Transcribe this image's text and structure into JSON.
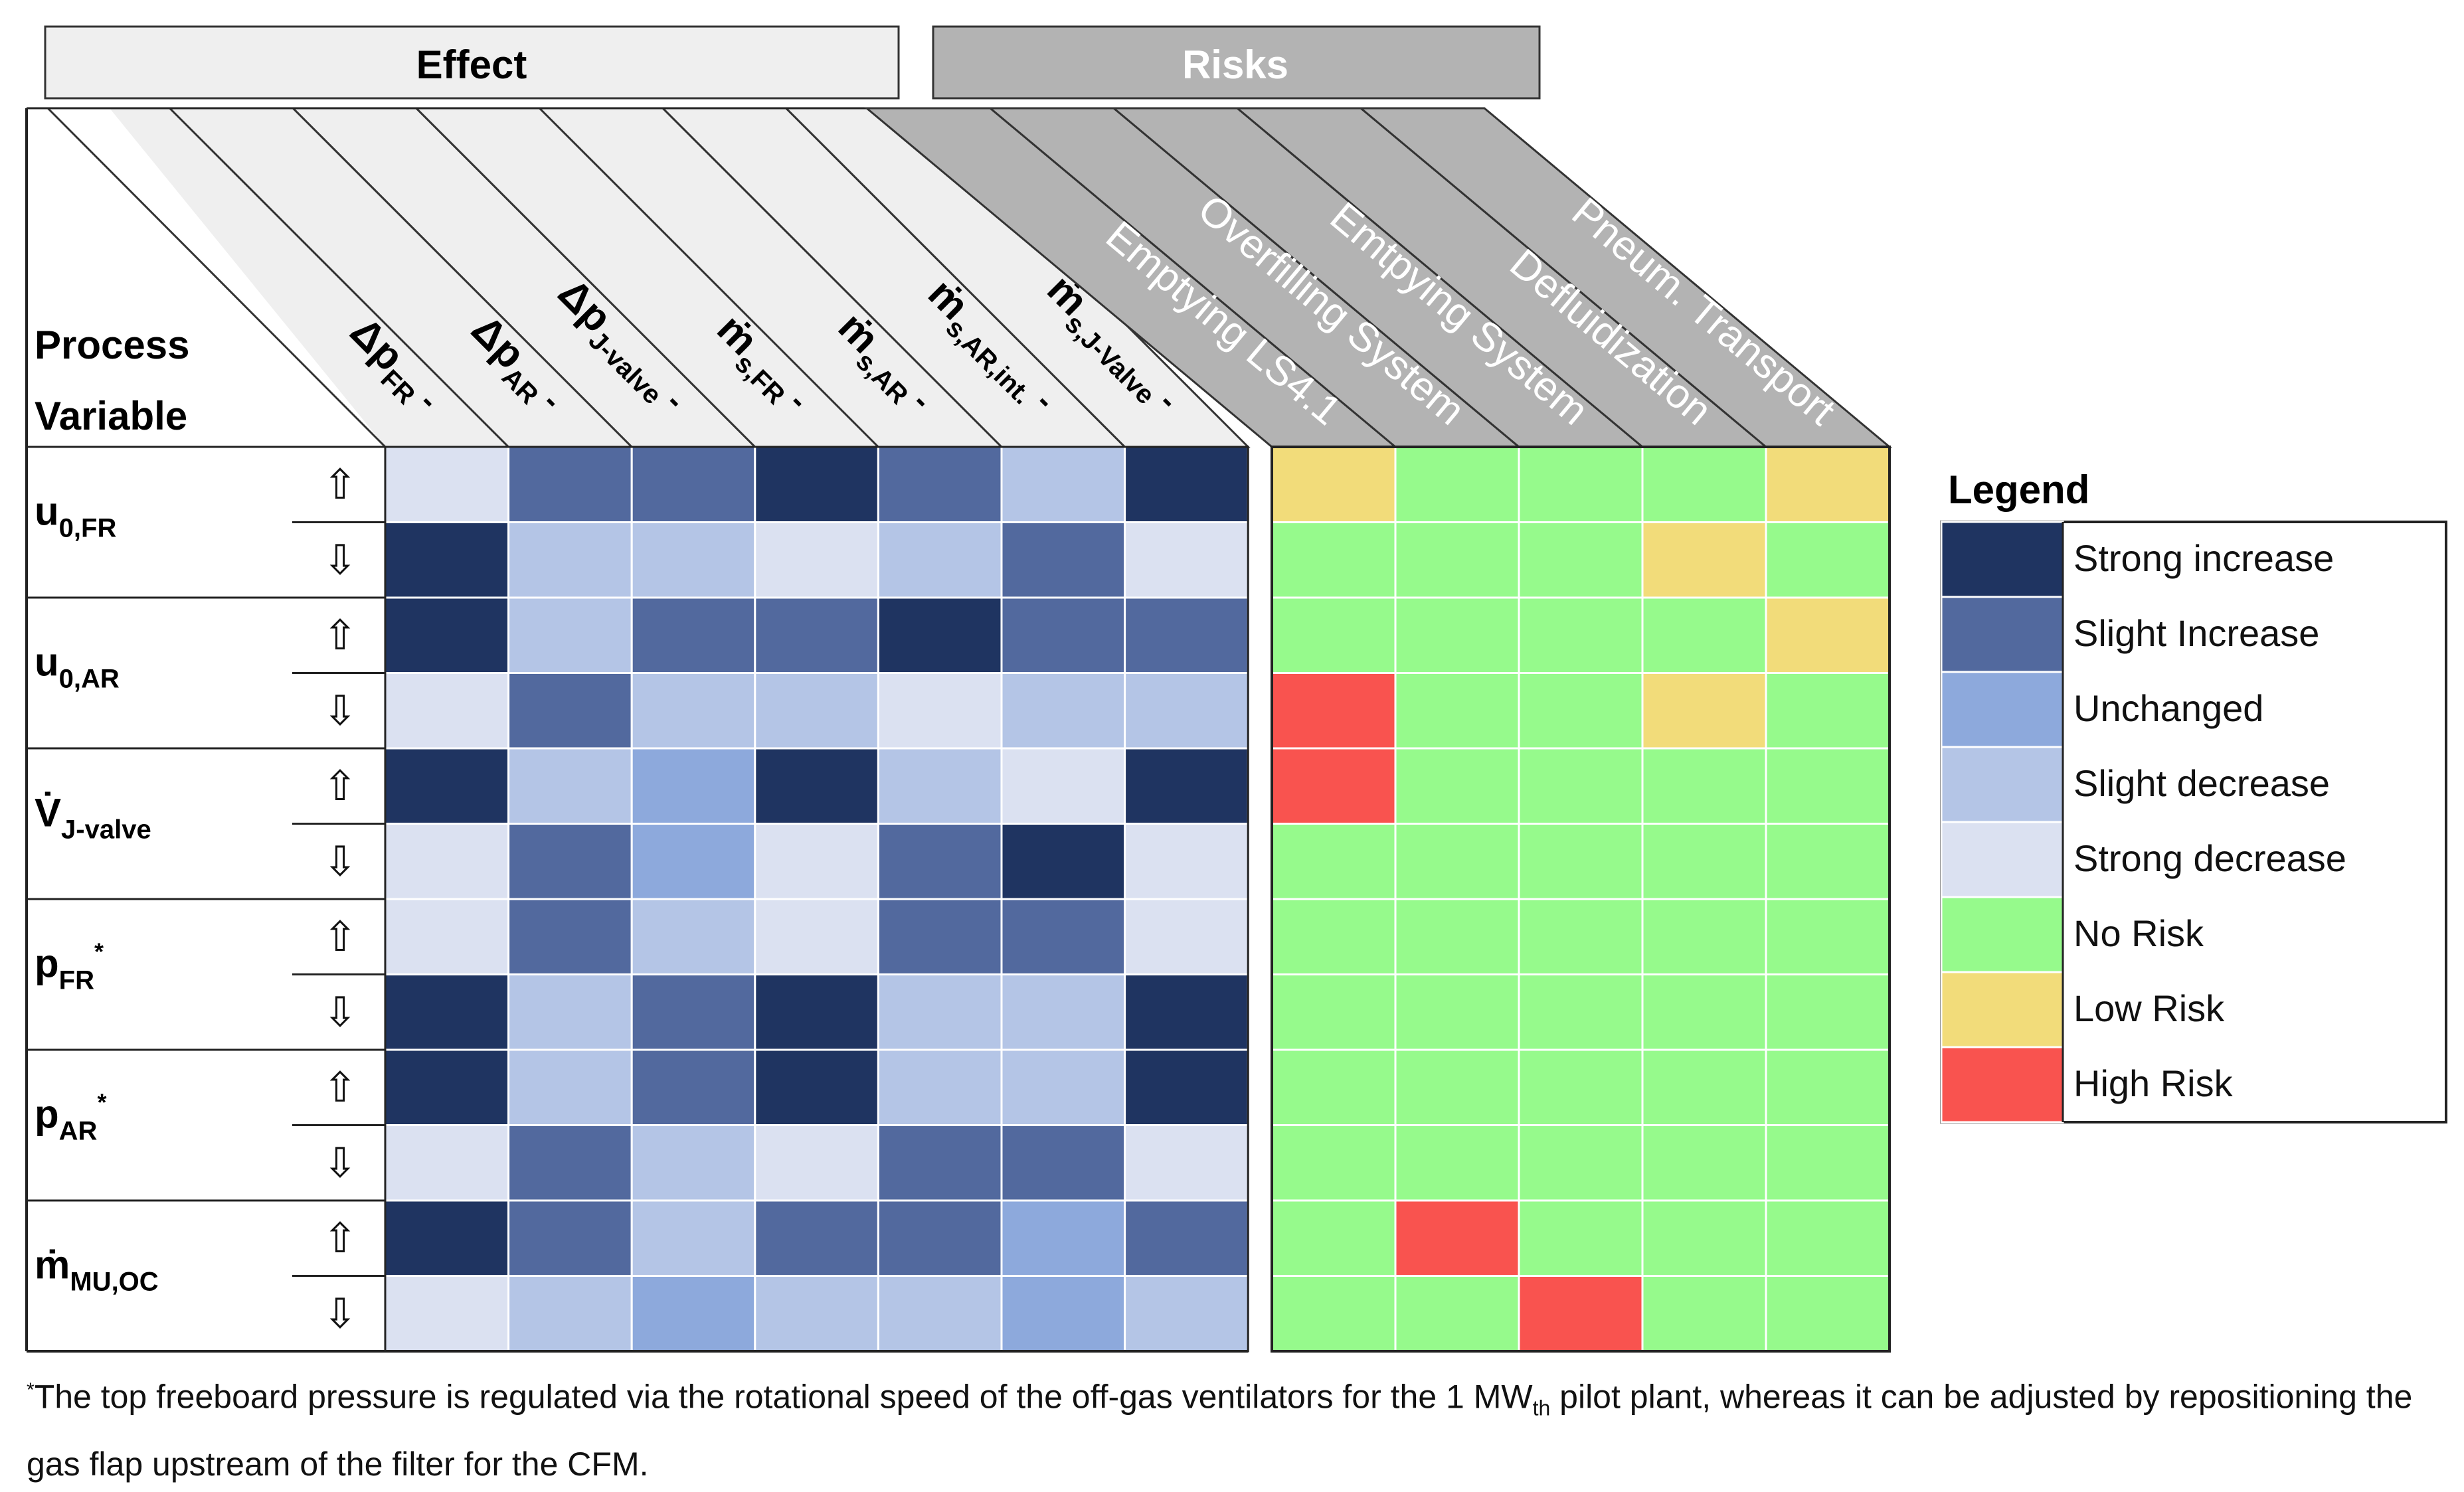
{
  "chart_data": {
    "type": "heatmap",
    "headers": {
      "effect": "Effect",
      "risks": "Risks"
    },
    "row_header": [
      "Process",
      "Variable"
    ],
    "effect_columns": [
      {
        "main": "Δp",
        "sub": "FR",
        "dot": false
      },
      {
        "main": "Δp",
        "sub": "AR",
        "dot": false
      },
      {
        "main": "Δp",
        "sub": "J-valve",
        "dot": false
      },
      {
        "main": "ṁ",
        "sub": "s,FR",
        "dot": true
      },
      {
        "main": "ṁ",
        "sub": "s,AR",
        "dot": true
      },
      {
        "main": "ṁ",
        "sub": "s,AR,int.",
        "dot": true
      },
      {
        "main": "ṁ",
        "sub": "s,J-Valve",
        "dot": true
      }
    ],
    "risk_columns": [
      "Emptying LS4.1",
      "Overfilling System",
      "Emtpying System",
      "Defluidization",
      "Pneum. Transport"
    ],
    "process_variables": [
      {
        "main": "u",
        "sub": "0,FR",
        "sup": ""
      },
      {
        "main": "u",
        "sub": "0,AR",
        "sup": ""
      },
      {
        "main": "V̇",
        "sub": "J-valve",
        "sup": ""
      },
      {
        "main": "p",
        "sub": "FR",
        "sup": "*"
      },
      {
        "main": "p",
        "sub": "AR",
        "sup": "*"
      },
      {
        "main": "ṁ",
        "sub": "MU,OC",
        "sup": ""
      }
    ],
    "direction_labels": [
      "⇧",
      "⇩"
    ],
    "effect_scale": [
      "Strong increase",
      "Slight Increase",
      "Unchanged",
      "Slight decrease",
      "Strong decrease"
    ],
    "risk_scale": [
      "No Risk",
      "Low Risk",
      "High Risk"
    ],
    "effect_values": [
      [
        "Strong decrease",
        "Slight Increase",
        "Slight Increase",
        "Strong increase",
        "Slight Increase",
        "Slight decrease",
        "Strong increase"
      ],
      [
        "Strong increase",
        "Slight decrease",
        "Slight decrease",
        "Strong decrease",
        "Slight decrease",
        "Slight Increase",
        "Strong decrease"
      ],
      [
        "Strong increase",
        "Slight decrease",
        "Slight Increase",
        "Slight Increase",
        "Strong increase",
        "Slight Increase",
        "Slight Increase"
      ],
      [
        "Strong decrease",
        "Slight Increase",
        "Slight decrease",
        "Slight decrease",
        "Strong decrease",
        "Slight decrease",
        "Slight decrease"
      ],
      [
        "Strong increase",
        "Slight decrease",
        "Unchanged",
        "Strong increase",
        "Slight decrease",
        "Strong decrease",
        "Strong increase"
      ],
      [
        "Strong decrease",
        "Slight Increase",
        "Unchanged",
        "Strong decrease",
        "Slight Increase",
        "Strong increase",
        "Strong decrease"
      ],
      [
        "Strong decrease",
        "Slight Increase",
        "Slight decrease",
        "Strong decrease",
        "Slight Increase",
        "Slight Increase",
        "Strong decrease"
      ],
      [
        "Strong increase",
        "Slight decrease",
        "Slight Increase",
        "Strong increase",
        "Slight decrease",
        "Slight decrease",
        "Strong increase"
      ],
      [
        "Strong increase",
        "Slight decrease",
        "Slight Increase",
        "Strong increase",
        "Slight decrease",
        "Slight decrease",
        "Strong increase"
      ],
      [
        "Strong decrease",
        "Slight Increase",
        "Slight decrease",
        "Strong decrease",
        "Slight Increase",
        "Slight Increase",
        "Strong decrease"
      ],
      [
        "Strong increase",
        "Slight Increase",
        "Slight decrease",
        "Slight Increase",
        "Slight Increase",
        "Unchanged",
        "Slight Increase"
      ],
      [
        "Strong decrease",
        "Slight decrease",
        "Unchanged",
        "Slight decrease",
        "Slight decrease",
        "Unchanged",
        "Slight decrease"
      ]
    ],
    "risk_values": [
      [
        "Low Risk",
        "No Risk",
        "No Risk",
        "No Risk",
        "Low Risk"
      ],
      [
        "No Risk",
        "No Risk",
        "No Risk",
        "Low Risk",
        "No Risk"
      ],
      [
        "No Risk",
        "No Risk",
        "No Risk",
        "No Risk",
        "Low Risk"
      ],
      [
        "High Risk",
        "No Risk",
        "No Risk",
        "Low Risk",
        "No Risk"
      ],
      [
        "High Risk",
        "No Risk",
        "No Risk",
        "No Risk",
        "No Risk"
      ],
      [
        "No Risk",
        "No Risk",
        "No Risk",
        "No Risk",
        "No Risk"
      ],
      [
        "No Risk",
        "No Risk",
        "No Risk",
        "No Risk",
        "No Risk"
      ],
      [
        "No Risk",
        "No Risk",
        "No Risk",
        "No Risk",
        "No Risk"
      ],
      [
        "No Risk",
        "No Risk",
        "No Risk",
        "No Risk",
        "No Risk"
      ],
      [
        "No Risk",
        "No Risk",
        "No Risk",
        "No Risk",
        "No Risk"
      ],
      [
        "No Risk",
        "High Risk",
        "No Risk",
        "No Risk",
        "No Risk"
      ],
      [
        "No Risk",
        "No Risk",
        "High Risk",
        "No Risk",
        "No Risk"
      ]
    ],
    "legend": {
      "title": "Legend",
      "items": [
        {
          "label": "Strong increase",
          "color": "#1f3461"
        },
        {
          "label": "Slight Increase",
          "color": "#52699e"
        },
        {
          "label": "Unchanged",
          "color": "#8da9dc"
        },
        {
          "label": "Slight decrease",
          "color": "#b4c5e6"
        },
        {
          "label": "Strong decrease",
          "color": "#dbe1f1"
        },
        {
          "label": "No Risk",
          "color": "#96fa8c"
        },
        {
          "label": "Low Risk",
          "color": "#f2dc7a"
        },
        {
          "label": "High Risk",
          "color": "#f9534f"
        }
      ]
    },
    "colors": {
      "effect_header_fill": "#efefef",
      "risks_header_fill": "#b3b3b3",
      "risks_header_text": "#ffffff",
      "grid_line": "#ffffff"
    }
  },
  "footnote": {
    "star": "*",
    "before_sub": "The top freeboard pressure is regulated via the rotational speed of the off-gas ventilators for the 1 MW",
    "sub": "th",
    "after_sub": " pilot plant, whereas it can be adjusted by repositioning the gas flap upstream of the filter for the CFM."
  }
}
